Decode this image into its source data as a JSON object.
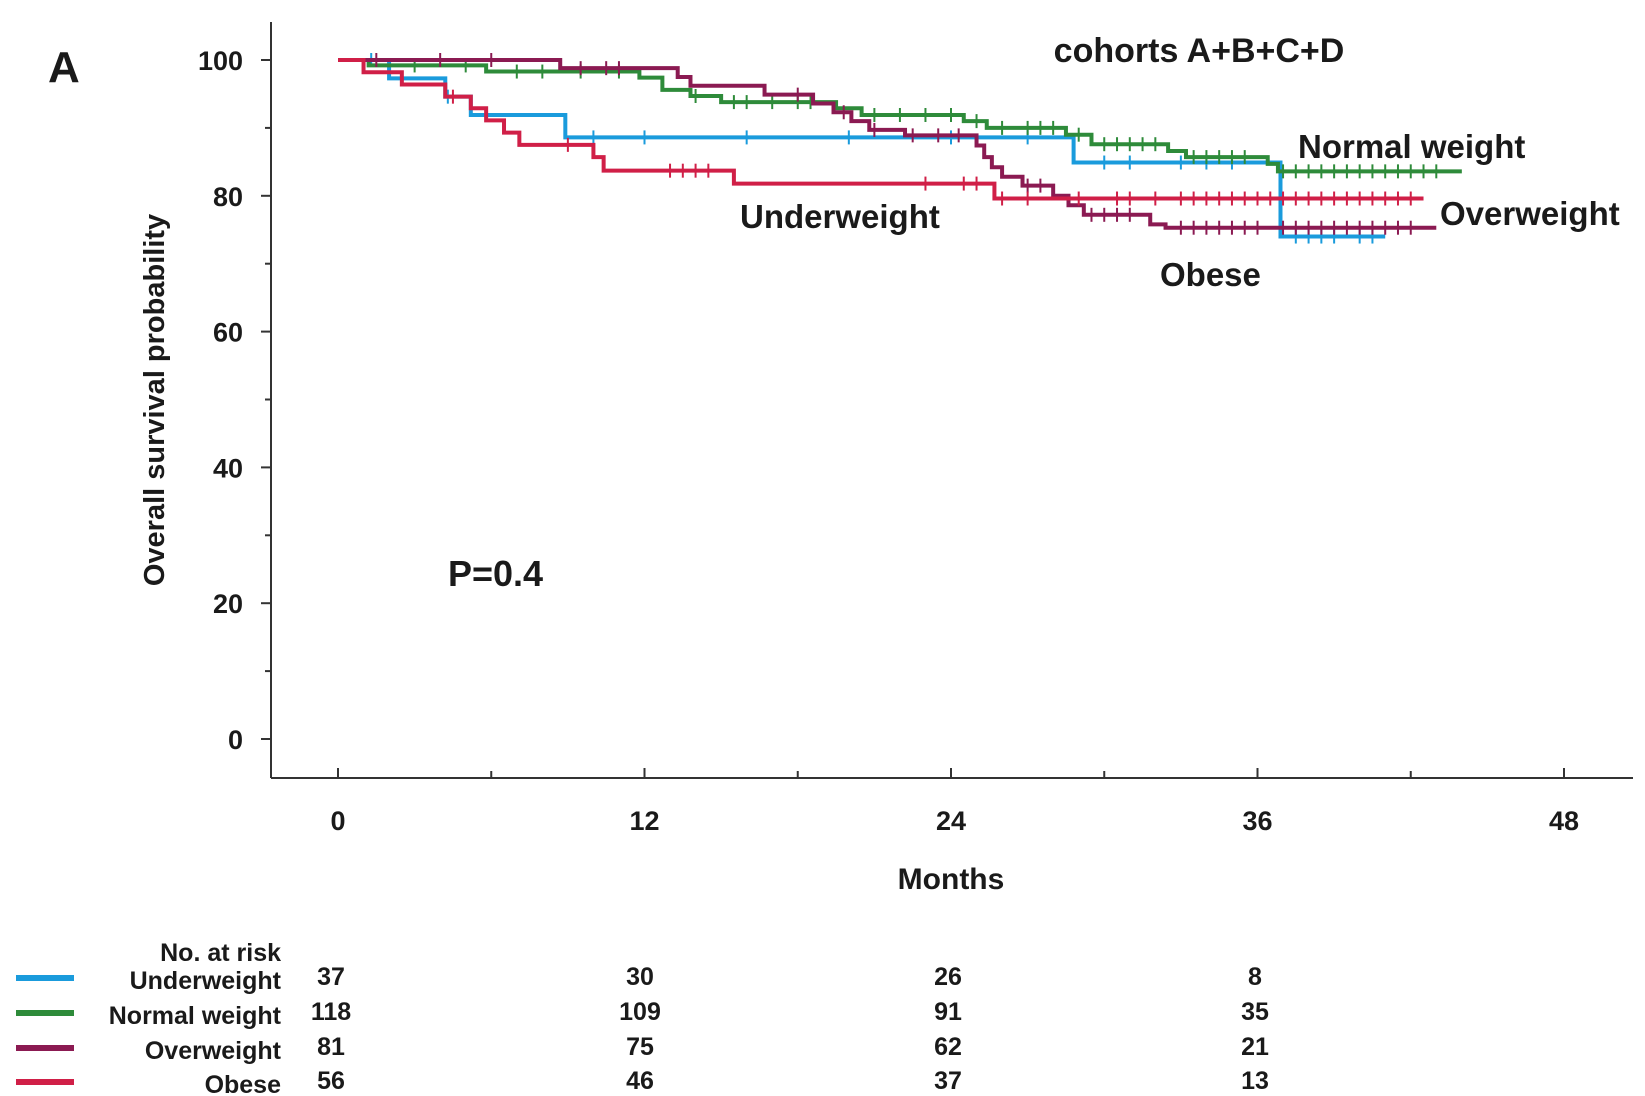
{
  "panel_label": "A",
  "chart_data": {
    "type": "line",
    "subtype": "kaplan-meier",
    "title": "cohorts A+B+C+D",
    "xlabel": "Months",
    "ylabel": "Overall survival probability",
    "xlim": [
      0,
      48
    ],
    "ylim": [
      0,
      100
    ],
    "x_ticks": [
      0,
      12,
      24,
      36,
      48
    ],
    "y_ticks": [
      0,
      20,
      40,
      60,
      80,
      100
    ],
    "grid": false,
    "annotation": "P=0.4",
    "series": [
      {
        "name": "Underweight",
        "color": "#1a9bdc",
        "steps": [
          [
            0,
            100
          ],
          [
            1.2,
            100
          ],
          [
            2,
            97.3
          ],
          [
            4.2,
            94.6
          ],
          [
            5.2,
            91.9
          ],
          [
            8.9,
            88.6
          ],
          [
            28.8,
            84.9
          ],
          [
            36.9,
            74
          ]
        ],
        "end": 41,
        "censors": [
          1.3,
          4.3,
          10,
          12,
          16,
          20,
          24,
          27,
          30,
          31,
          33,
          34,
          35,
          37.5,
          38,
          38.5,
          39,
          40,
          40.5
        ]
      },
      {
        "name": "Normal weight",
        "color": "#2e8b3a",
        "steps": [
          [
            0,
            100
          ],
          [
            1.2,
            99.2
          ],
          [
            5.8,
            98.3
          ],
          [
            11.8,
            97.4
          ],
          [
            12.7,
            95.6
          ],
          [
            13.8,
            94.7
          ],
          [
            15,
            93.8
          ],
          [
            19.5,
            92.9
          ],
          [
            20.5,
            91.9
          ],
          [
            24.5,
            91
          ],
          [
            25.4,
            90
          ],
          [
            28.5,
            89
          ],
          [
            29.5,
            87.6
          ],
          [
            32.5,
            86.6
          ],
          [
            33.2,
            85.7
          ],
          [
            36.4,
            84.7
          ],
          [
            36.8,
            83.6
          ]
        ],
        "end": 44,
        "censors": [
          3,
          5,
          7,
          8,
          9.5,
          11,
          14,
          15.5,
          16,
          17,
          18,
          18.5,
          21,
          22,
          23,
          24,
          25,
          26,
          27,
          27.5,
          28,
          29,
          30,
          30.5,
          31,
          31.5,
          32,
          33.5,
          34,
          34.5,
          35,
          35.5,
          37,
          37.5,
          38,
          38.5,
          39,
          39.5,
          40,
          40.5,
          41,
          41.5,
          42,
          42.5,
          43
        ]
      },
      {
        "name": "Overweight",
        "color": "#8b1a52",
        "steps": [
          [
            0,
            100
          ],
          [
            8.7,
            98.8
          ],
          [
            13.3,
            97.5
          ],
          [
            13.8,
            96.2
          ],
          [
            16.7,
            94.9
          ],
          [
            18.6,
            93.6
          ],
          [
            19.4,
            92.3
          ],
          [
            20.1,
            91
          ],
          [
            20.8,
            89.7
          ],
          [
            22.2,
            88.9
          ],
          [
            25,
            87.4
          ],
          [
            25.3,
            85.7
          ],
          [
            25.6,
            84.2
          ],
          [
            26,
            82.8
          ],
          [
            26.8,
            81.5
          ],
          [
            28,
            80
          ],
          [
            28.6,
            78.6
          ],
          [
            29.2,
            77.2
          ],
          [
            31.8,
            75.8
          ],
          [
            32.4,
            75.3
          ]
        ],
        "end": 43,
        "censors": [
          1.5,
          4,
          6,
          9.5,
          10.5,
          11,
          18,
          19.8,
          21,
          22.5,
          23.5,
          24.3,
          27,
          27.5,
          29.5,
          30,
          30.5,
          31,
          33,
          33.5,
          34,
          34.5,
          35,
          35.5,
          36,
          37,
          37.5,
          38,
          38.5,
          39,
          39.5,
          40,
          40.5,
          41,
          41.5,
          42
        ]
      },
      {
        "name": "Obese",
        "color": "#d01f47",
        "steps": [
          [
            0,
            100
          ],
          [
            1,
            98.2
          ],
          [
            2.5,
            96.4
          ],
          [
            4.2,
            94.6
          ],
          [
            5.2,
            92.9
          ],
          [
            5.8,
            91.1
          ],
          [
            6.5,
            89.3
          ],
          [
            7.1,
            87.5
          ],
          [
            10,
            85.7
          ],
          [
            10.4,
            83.7
          ],
          [
            15.5,
            81.8
          ],
          [
            25.7,
            79.6
          ],
          [
            30,
            79.6
          ]
        ],
        "end": 42.5,
        "censors": [
          4.5,
          9,
          13,
          13.5,
          14,
          14.5,
          23,
          24.5,
          25,
          26,
          27,
          29,
          30.5,
          31,
          32,
          33,
          33.5,
          34,
          34.5,
          35,
          35.5,
          36,
          36.5,
          37,
          37.5,
          38,
          38.5,
          39,
          39.5,
          40,
          40.5,
          41,
          41.5,
          42
        ]
      }
    ],
    "curve_labels": [
      "Normal weight",
      "Overweight",
      "Underweight",
      "Obese"
    ]
  },
  "risk_table": {
    "title": "No. at risk",
    "rows": [
      {
        "name": "Underweight",
        "color": "#1a9bdc",
        "values": [
          "37",
          "30",
          "26",
          "8"
        ]
      },
      {
        "name": "Normal weight",
        "color": "#2e8b3a",
        "values": [
          "118",
          "109",
          "91",
          "35"
        ]
      },
      {
        "name": "Overweight",
        "color": "#8b1a52",
        "values": [
          "81",
          "75",
          "62",
          "21"
        ]
      },
      {
        "name": "Obese",
        "color": "#d01f47",
        "values": [
          "56",
          "46",
          "37",
          "13"
        ]
      }
    ]
  }
}
